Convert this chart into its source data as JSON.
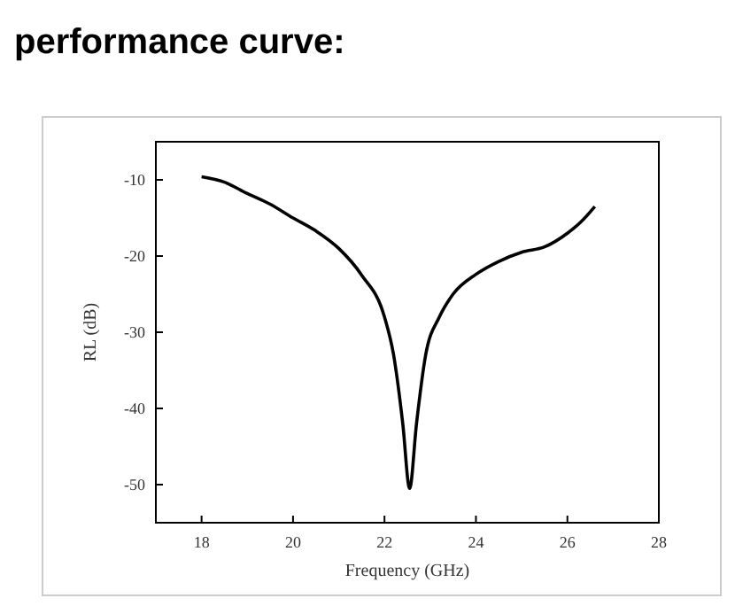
{
  "chart_data": {
    "type": "line",
    "title": "performance curve:",
    "xlabel": "Frequency (GHz)",
    "ylabel": "RL (dB)",
    "x": [
      18,
      18.5,
      19,
      19.5,
      20,
      20.5,
      21,
      21.5,
      22,
      22.2,
      22.4,
      22.55,
      22.7,
      22.9,
      23.2,
      23.5,
      24,
      24.5,
      25,
      25.5,
      26,
      26.3,
      26.6
    ],
    "values": [
      -9.6,
      -10.3,
      -11.8,
      -13.2,
      -15,
      -16.7,
      -19,
      -22.5,
      -28,
      -33,
      -42,
      -50.5,
      -42,
      -33,
      -28,
      -25,
      -22.4,
      -20.7,
      -19.5,
      -18.8,
      -17,
      -15.5,
      -13.5
    ],
    "color": "#000000",
    "xlim": [
      17,
      28
    ],
    "xticks": [
      18,
      20,
      22,
      24,
      26,
      28
    ],
    "ylim": [
      -55,
      -5
    ],
    "yticks": [
      -10,
      -20,
      -30,
      -40,
      -50
    ],
    "grid": false,
    "marker": "none",
    "line_style": "solid"
  }
}
